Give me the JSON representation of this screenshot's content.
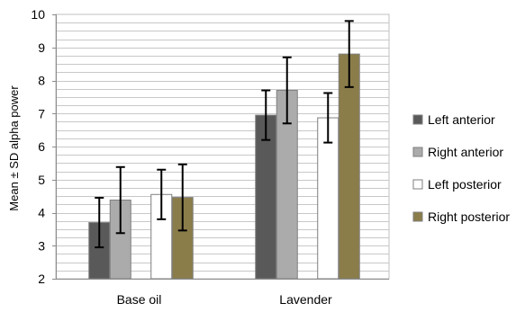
{
  "chart_data": {
    "type": "bar",
    "title": "",
    "xlabel": "",
    "ylabel": "Mean ± SD alpha power",
    "ylim": [
      2,
      10
    ],
    "yticks": [
      2,
      3,
      4,
      5,
      6,
      7,
      8,
      9,
      10
    ],
    "minor_grid_step": 0.25,
    "grid": true,
    "legend_position": "right",
    "categories": [
      "Base oil",
      "Lavender"
    ],
    "series": [
      {
        "name": "Left anterior",
        "color": "#595959",
        "values": [
          3.7,
          6.95
        ],
        "sd": [
          0.75,
          0.75
        ]
      },
      {
        "name": "Right anterior",
        "color": "#ababab",
        "values": [
          4.38,
          7.7
        ],
        "sd": [
          1.0,
          1.0
        ]
      },
      {
        "name": "Left posterior",
        "color": "#ffffff",
        "values": [
          4.55,
          6.87
        ],
        "sd": [
          0.75,
          0.75
        ]
      },
      {
        "name": "Right posterior",
        "color": "#8b7d4a",
        "values": [
          4.46,
          8.8
        ],
        "sd": [
          1.0,
          1.0
        ]
      }
    ]
  }
}
